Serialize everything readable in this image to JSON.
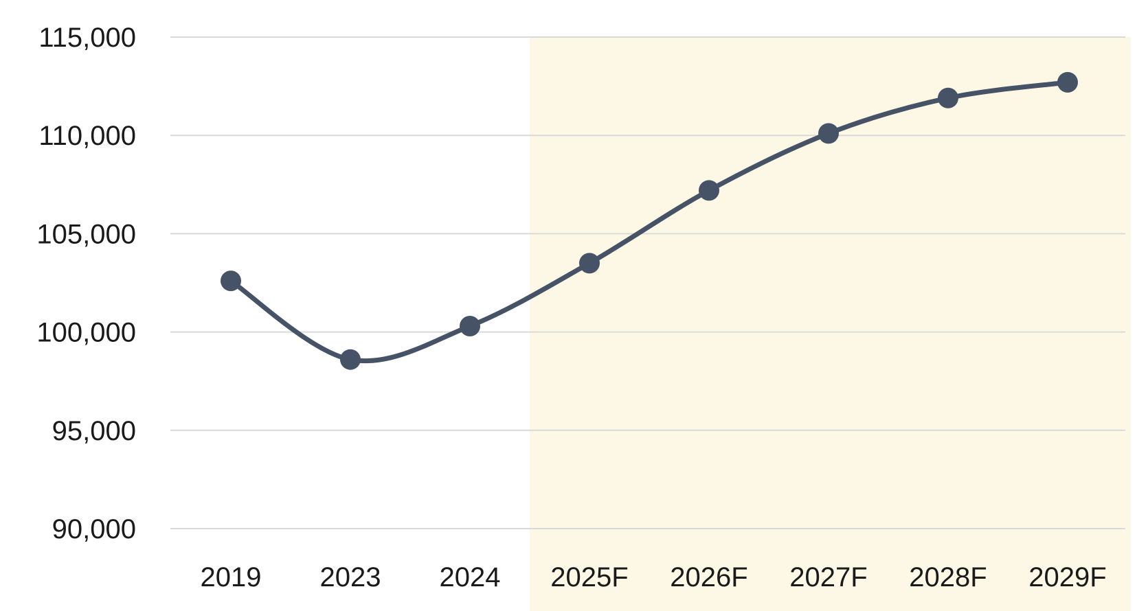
{
  "chart_data": {
    "type": "line",
    "categories": [
      "2019",
      "2023",
      "2024",
      "2025F",
      "2026F",
      "2027F",
      "2028F",
      "2029F"
    ],
    "series": [
      {
        "values": [
          102600,
          98600,
          100300,
          103500,
          107200,
          110100,
          111900,
          112700
        ]
      }
    ],
    "title": "",
    "xlabel": "",
    "ylabel": "",
    "ylim": [
      90000,
      115000
    ],
    "yticks": [
      "90,000",
      "95,000",
      "100,000",
      "105,000",
      "110,000",
      "115,000"
    ],
    "forecast_region_start_category": "2025F",
    "grid": true,
    "legend": "none",
    "colors": {
      "line": "#465366",
      "grid": "#d9d9d9",
      "forecast_band": "#fdf8e6"
    }
  }
}
